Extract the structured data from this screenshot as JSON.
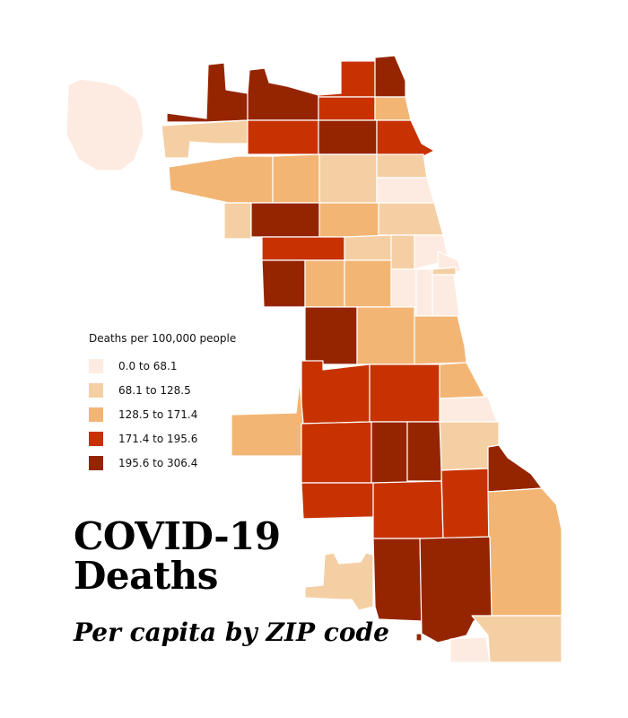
{
  "title_line1": "COVID-19",
  "title_line2": "Deaths",
  "subtitle": "Per capita by ZIP code",
  "legend": {
    "title": "Deaths per 100,000 people",
    "items": [
      {
        "label": "0.0 to 68.1",
        "color": "#fdebe2"
      },
      {
        "label": "68.1 to 128.5",
        "color": "#f5cfa4"
      },
      {
        "label": "128.5 to 171.4",
        "color": "#f3b574"
      },
      {
        "label": "171.4 to 195.6",
        "color": "#c73200"
      },
      {
        "label": "195.6 to 306.4",
        "color": "#952500"
      }
    ]
  }
}
